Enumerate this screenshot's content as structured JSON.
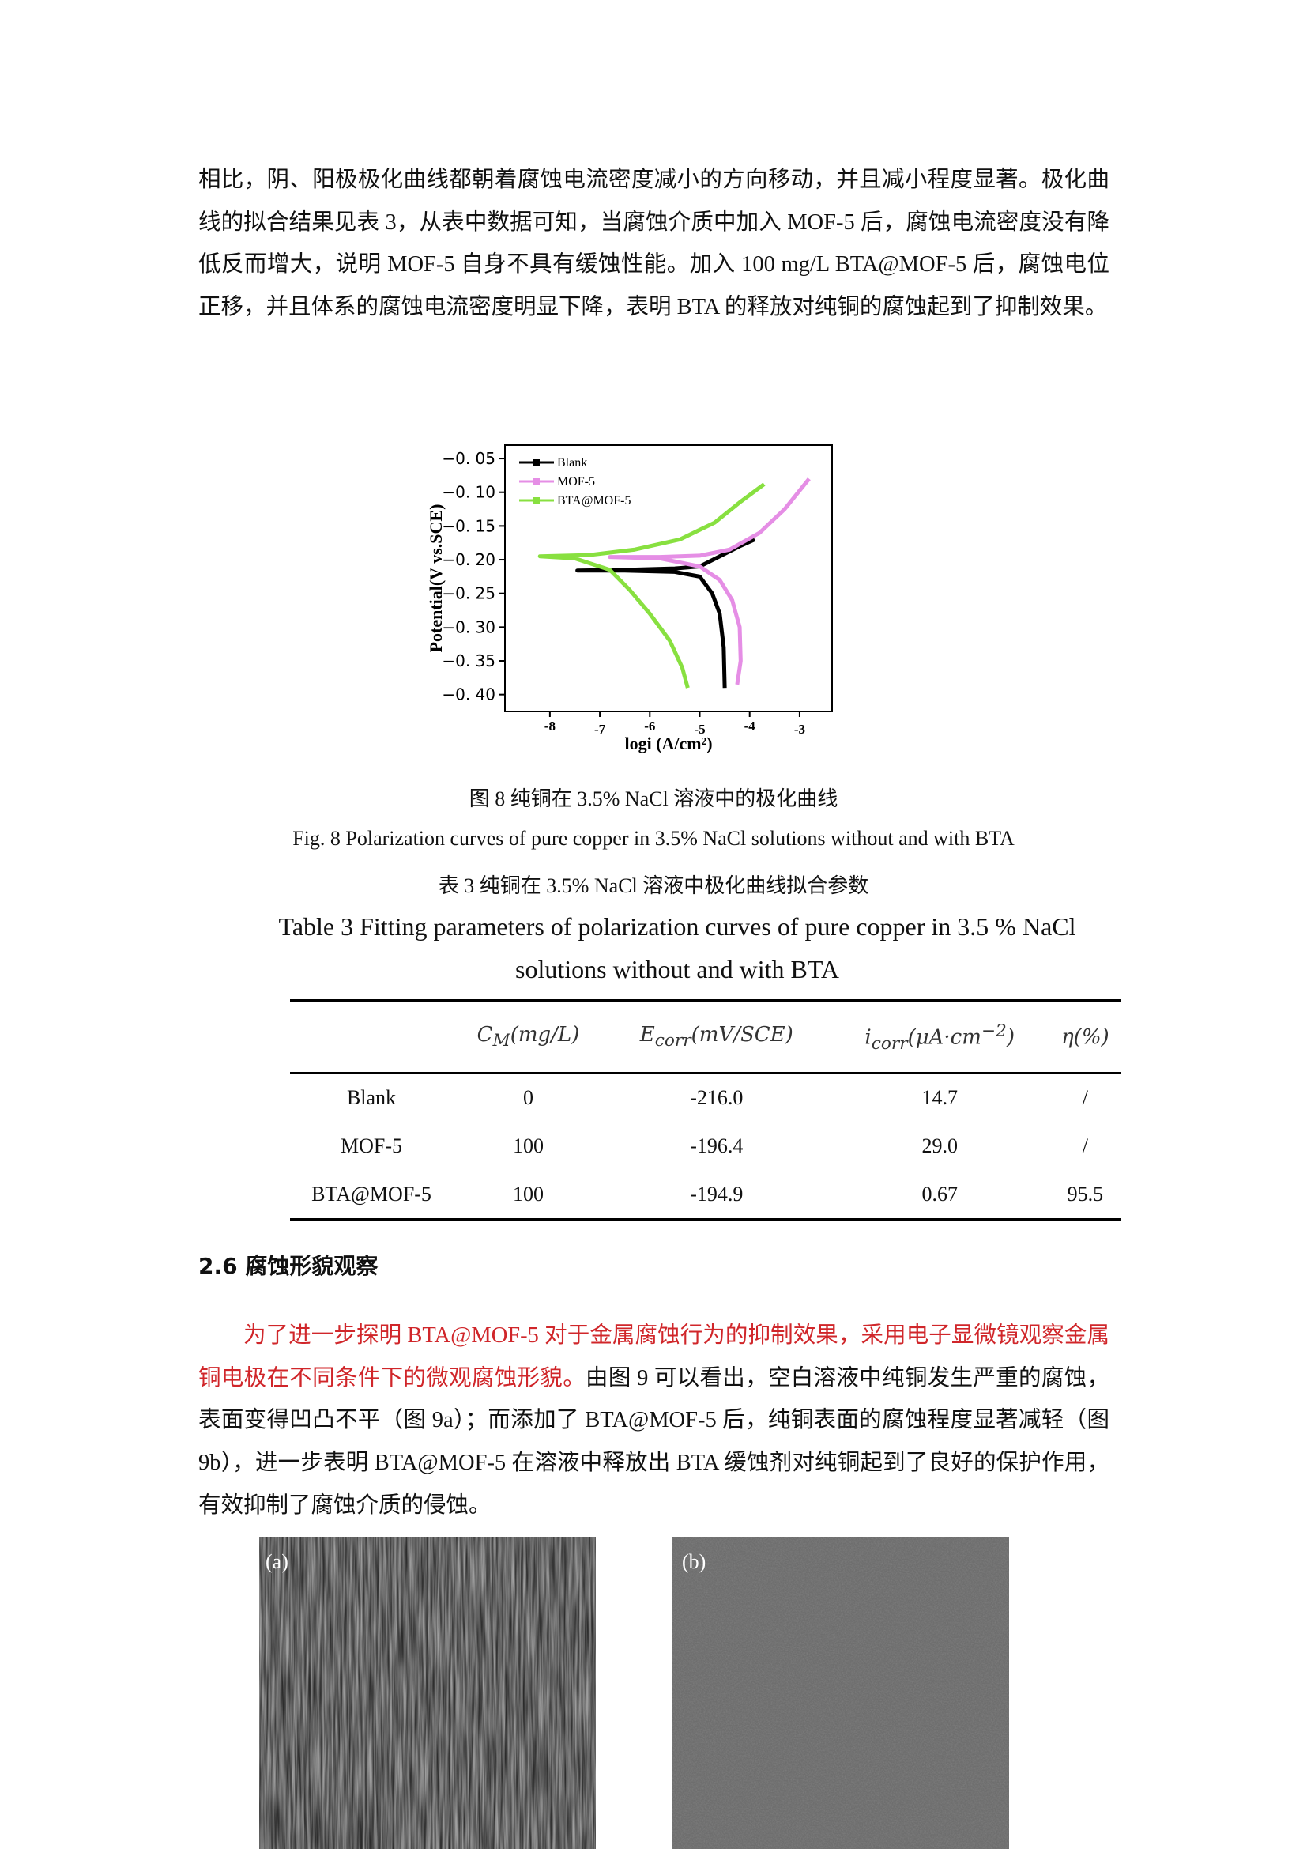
{
  "paragraph_1": "相比，阴、阳极极化曲线都朝着腐蚀电流密度减小的方向移动，并且减小程度显著。极化曲线的拟合结果见表 3，从表中数据可知，当腐蚀介质中加入 MOF-5 后，腐蚀电流密度没有降低反而增大，说明 MOF-5 自身不具有缓蚀性能。加入 100 mg/L BTA@MOF-5 后，腐蚀电位正移，并且体系的腐蚀电流密度明显下降，表明 BTA 的释放对纯铜的腐蚀起到了抑制效果。",
  "chart_data": {
    "type": "line",
    "x_label": "logi (A/cm²)",
    "y_label": "Potential(V vs.SCE)",
    "xlim": [
      -8.9,
      -2.35
    ],
    "xticks": [
      -8,
      -7,
      -6,
      -5,
      -4,
      -3
    ],
    "ylim": [
      -0.425,
      -0.03
    ],
    "yticks": [
      {
        "value": -0.05,
        "label": "−0. 05"
      },
      {
        "value": -0.1,
        "label": "−0. 10"
      },
      {
        "value": -0.15,
        "label": "−0. 15"
      },
      {
        "value": -0.2,
        "label": "−0. 20"
      },
      {
        "value": -0.25,
        "label": "−0. 25"
      },
      {
        "value": -0.3,
        "label": "−0. 30"
      },
      {
        "value": -0.35,
        "label": "−0. 35"
      },
      {
        "value": -0.4,
        "label": "−0. 40"
      }
    ],
    "legend": "upper-left",
    "series": [
      {
        "name": "Blank",
        "color": "#000000",
        "x": [
          -4.5,
          -4.52,
          -4.6,
          -4.75,
          -5.0,
          -5.5,
          -6.5,
          -7.45,
          -6.5,
          -5.5,
          -5.0,
          -4.6,
          -4.2,
          -3.9
        ],
        "values": [
          -0.39,
          -0.33,
          -0.28,
          -0.25,
          -0.225,
          -0.218,
          -0.216,
          -0.216,
          -0.215,
          -0.213,
          -0.21,
          -0.195,
          -0.18,
          -0.17
        ]
      },
      {
        "name": "MOF-5",
        "color": "#e58ee5",
        "x": [
          -4.25,
          -4.18,
          -4.2,
          -4.35,
          -4.6,
          -5.0,
          -5.8,
          -6.8,
          -5.8,
          -5.0,
          -4.4,
          -3.8,
          -3.3,
          -2.81
        ],
        "values": [
          -0.385,
          -0.35,
          -0.3,
          -0.26,
          -0.23,
          -0.21,
          -0.198,
          -0.196,
          -0.196,
          -0.194,
          -0.185,
          -0.16,
          -0.125,
          -0.08
        ]
      },
      {
        "name": "BTA@MOF-5",
        "color": "#88e040",
        "x": [
          -5.24,
          -5.35,
          -5.6,
          -6.0,
          -6.4,
          -6.8,
          -7.5,
          -8.2,
          -7.2,
          -6.3,
          -5.4,
          -4.7,
          -4.2,
          -3.71
        ],
        "values": [
          -0.39,
          -0.36,
          -0.32,
          -0.28,
          -0.245,
          -0.215,
          -0.198,
          -0.195,
          -0.193,
          -0.185,
          -0.17,
          -0.145,
          -0.115,
          -0.088
        ]
      }
    ]
  },
  "figure_caption_cn": "图 8 纯铜在 3.5% NaCl 溶液中的极化曲线",
  "figure_caption_en": "Fig. 8 Polarization curves of pure copper in 3.5% NaCl solutions without and with BTA",
  "table_caption_cn": "表 3  纯铜在 3.5% NaCl 溶液中极化曲线拟合参数",
  "table_caption_en": "Table 3 Fitting parameters of polarization curves of pure copper in 3.5 % NaCl solutions without and with BTA",
  "table": {
    "headers": [
      {
        "base": "C",
        "sub": "M",
        "unit": "(mg/L)"
      },
      {
        "base": "E",
        "sub": "corr",
        "unit": "(mV/SCE)"
      },
      {
        "base": "i",
        "sub": "corr",
        "unit": "(μA·cm",
        "sup": "−2",
        "close": ")"
      },
      {
        "base": "η(%)"
      }
    ],
    "rows": [
      [
        "Blank",
        "0",
        "-216.0",
        "14.7",
        "/"
      ],
      [
        "MOF-5",
        "100",
        "-196.4",
        "29.0",
        "/"
      ],
      [
        "BTA@MOF-5",
        "100",
        "-194.9",
        "0.67",
        "95.5"
      ]
    ]
  },
  "section_heading": "2.6  腐蚀形貌观察",
  "paragraph_2": {
    "highlight": "为了进一步探明 BTA@MOF-5 对于金属腐蚀行为的抑制效果，采用电子显微镜观察金属铜电极在不同条件下的微观腐蚀形貌。",
    "text": "由图 9 可以看出，空白溶液中纯铜发生严重的腐蚀，表面变得凹凸不平（图 9a）；而添加了 BTA@MOF-5 后，纯铜表面的腐蚀程度显著减轻（图 9b），进一步表明 BTA@MOF-5 在溶液中释放出 BTA 缓蚀剂对纯铜起到了良好的保护作用，有效抑制了腐蚀介质的侵蚀。"
  },
  "image_labels": [
    "(a)",
    "(b)"
  ]
}
